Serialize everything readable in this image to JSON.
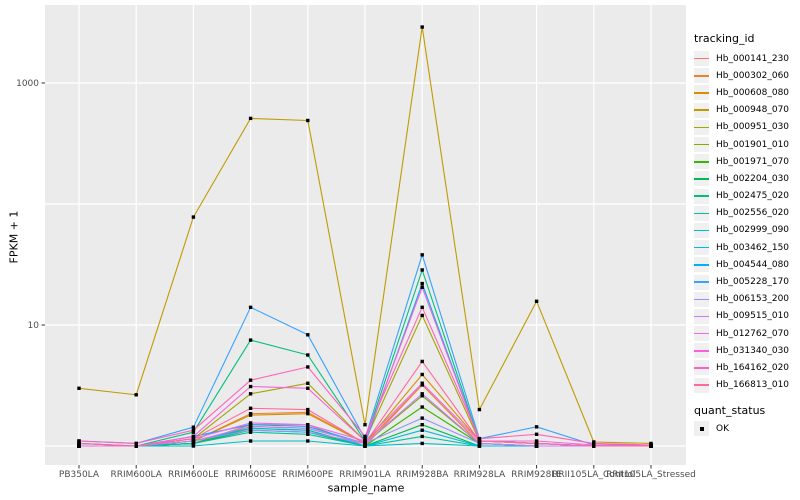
{
  "figure": {
    "background": "#FFFFFF",
    "panel_bg": "#EBEBEB",
    "grid_color": "#FFFFFF",
    "axis_text_color": "#4D4D4D",
    "tick_mark_color": "#333333",
    "point_color": "#000000"
  },
  "chart_data": {
    "type": "line",
    "title": "",
    "xlabel": "sample_name",
    "ylabel": "FPKM + 1",
    "y_scale": "log10",
    "y_tick_labels": [
      10,
      1000
    ],
    "y_gridlines": [
      1,
      10,
      100,
      1000
    ],
    "ylim": [
      0.7,
      4300
    ],
    "legend_position": "right",
    "grid": true,
    "categories": [
      "PB350LA",
      "RRIM600LA",
      "RRIM600LE",
      "RRIM600SE",
      "RRIM600PE",
      "RRIM901LA",
      "RRIM928BA",
      "RRIM928LA",
      "RRIM928LE",
      "RRII105LA_Control",
      "RRII105LA_Stressed"
    ],
    "series": [
      {
        "name": "Hb_000141_230",
        "color": "#F8766D",
        "values": [
          1,
          1,
          1.05,
          1.5,
          1.5,
          1,
          3.2,
          1.05,
          1,
          1,
          1
        ]
      },
      {
        "name": "Hb_000302_060",
        "color": "#EA8331",
        "values": [
          1,
          1,
          1.1,
          1.85,
          1.9,
          1.05,
          3.2,
          1.05,
          1,
          1,
          1
        ]
      },
      {
        "name": "Hb_000608_080",
        "color": "#D89000",
        "values": [
          1,
          1,
          1.1,
          1.8,
          1.85,
          1.05,
          3.9,
          1.1,
          1.05,
          1,
          1
        ]
      },
      {
        "name": "Hb_000948_070",
        "color": "#C09B00",
        "values": [
          3.0,
          2.65,
          78,
          510,
          490,
          1.5,
          2900,
          2.0,
          15.7,
          1.08,
          1.05
        ]
      },
      {
        "name": "Hb_000951_030",
        "color": "#A3A500",
        "values": [
          1,
          1,
          1.15,
          2.7,
          3.3,
          1.1,
          12,
          1.1,
          1.05,
          1,
          1
        ]
      },
      {
        "name": "Hb_001901_010",
        "color": "#7CAE00",
        "values": [
          1,
          1,
          1.05,
          1.45,
          1.4,
          1.05,
          2.6,
          1.05,
          1,
          1,
          1
        ]
      },
      {
        "name": "Hb_001971_070",
        "color": "#39B600",
        "values": [
          1,
          1,
          1.05,
          1.4,
          1.35,
          1,
          2.1,
          1.05,
          1,
          1,
          1
        ]
      },
      {
        "name": "Hb_002204_030",
        "color": "#00BB4E",
        "values": [
          1,
          1,
          1.05,
          1.35,
          1.3,
          1,
          1.5,
          1,
          1,
          1,
          1
        ]
      },
      {
        "name": "Hb_002475_020",
        "color": "#00BF7D",
        "values": [
          1.05,
          1,
          1.3,
          7.5,
          5.65,
          1.1,
          28.5,
          1.1,
          1.05,
          1,
          1
        ]
      },
      {
        "name": "Hb_002556_020",
        "color": "#00C1A3",
        "values": [
          1,
          1,
          1.05,
          1.3,
          1.25,
          1,
          1.2,
          1,
          1,
          1,
          1
        ]
      },
      {
        "name": "Hb_002999_090",
        "color": "#00BFC4",
        "values": [
          1,
          1,
          1,
          1.1,
          1.1,
          1,
          1.05,
          1,
          1,
          1,
          1
        ]
      },
      {
        "name": "Hb_003462_150",
        "color": "#00BAE0",
        "values": [
          1,
          1,
          1.1,
          1.4,
          1.35,
          1,
          1.35,
          1,
          1,
          1,
          1
        ]
      },
      {
        "name": "Hb_004544_080",
        "color": "#00B0F6",
        "values": [
          1.05,
          1,
          1.2,
          1.5,
          1.45,
          1.05,
          22,
          1.1,
          1.05,
          1,
          1
        ]
      },
      {
        "name": "Hb_005228_170",
        "color": "#35A2FF",
        "values": [
          1.1,
          1.05,
          1.43,
          14,
          8.3,
          1.15,
          38,
          1.15,
          1.44,
          1.02,
          1.02
        ]
      },
      {
        "name": "Hb_006153_200",
        "color": "#9590FF",
        "values": [
          1,
          1,
          1.1,
          1.35,
          1.3,
          1.05,
          1.7,
          1.05,
          1,
          1,
          1
        ]
      },
      {
        "name": "Hb_009515_010",
        "color": "#C77CFF",
        "values": [
          1,
          1,
          1.1,
          1.45,
          1.4,
          1.05,
          2.7,
          1.05,
          1,
          1,
          1
        ]
      },
      {
        "name": "Hb_012762_070",
        "color": "#E76BF3",
        "values": [
          1,
          1,
          1.15,
          1.55,
          1.5,
          1.1,
          3.3,
          1.1,
          1.05,
          1,
          1
        ]
      },
      {
        "name": "Hb_031340_030",
        "color": "#FA62DB",
        "values": [
          1,
          1,
          1.2,
          3.1,
          3.0,
          1.1,
          20.5,
          1.1,
          1.1,
          1.02,
          1
        ]
      },
      {
        "name": "Hb_164162_020",
        "color": "#FF62BC",
        "values": [
          1.1,
          1.05,
          1.35,
          3.5,
          4.5,
          1.2,
          14,
          1.15,
          1.25,
          1.05,
          1.02
        ]
      },
      {
        "name": "Hb_166813_010",
        "color": "#FF6A98",
        "values": [
          1.05,
          1,
          1.15,
          2.05,
          2.0,
          1.05,
          5.0,
          1.1,
          1.05,
          1,
          1
        ]
      }
    ]
  },
  "legend_tracking": {
    "title": "tracking_id"
  },
  "legend_quant": {
    "title": "quant_status",
    "items": [
      {
        "label": "OK"
      }
    ]
  }
}
